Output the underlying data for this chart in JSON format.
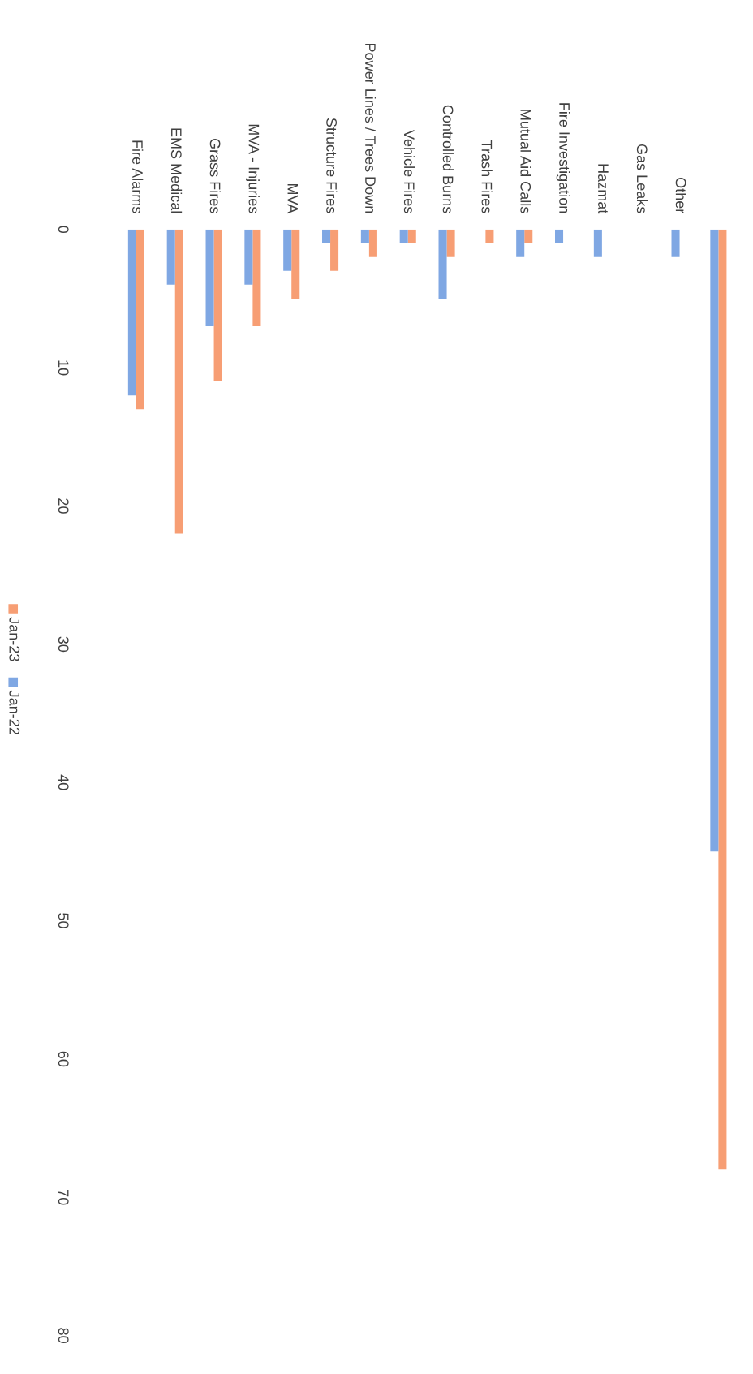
{
  "chart_data": {
    "type": "bar",
    "categories": [
      "Fire Alarms",
      "EMS Medical",
      "Grass Fires",
      "MVA - Injuries",
      "MVA",
      "Structure Fires",
      "Power Lines / Trees Down",
      "Vehicle Fires",
      "Controlled Burns",
      "Trash Fires",
      "Mutual Aid Calls",
      "Fire Investigation",
      "Hazmat",
      "Gas Leaks",
      "Other",
      null
    ],
    "series": [
      {
        "name": "Jan-23",
        "color": "#f79e74",
        "values": [
          13,
          22,
          11,
          7,
          5,
          3,
          2,
          1,
          2,
          1,
          1,
          0,
          0,
          0,
          0,
          68
        ]
      },
      {
        "name": "Jan-22",
        "color": "#7fa7e3",
        "values": [
          12,
          4,
          7,
          4,
          3,
          1,
          1,
          1,
          5,
          0,
          2,
          1,
          2,
          0,
          2,
          45
        ]
      }
    ],
    "ylim": [
      80,
      0
    ],
    "yticks": [
      0,
      10,
      20,
      30,
      40,
      50,
      60,
      70,
      80
    ],
    "grid": false,
    "legend": "left"
  }
}
